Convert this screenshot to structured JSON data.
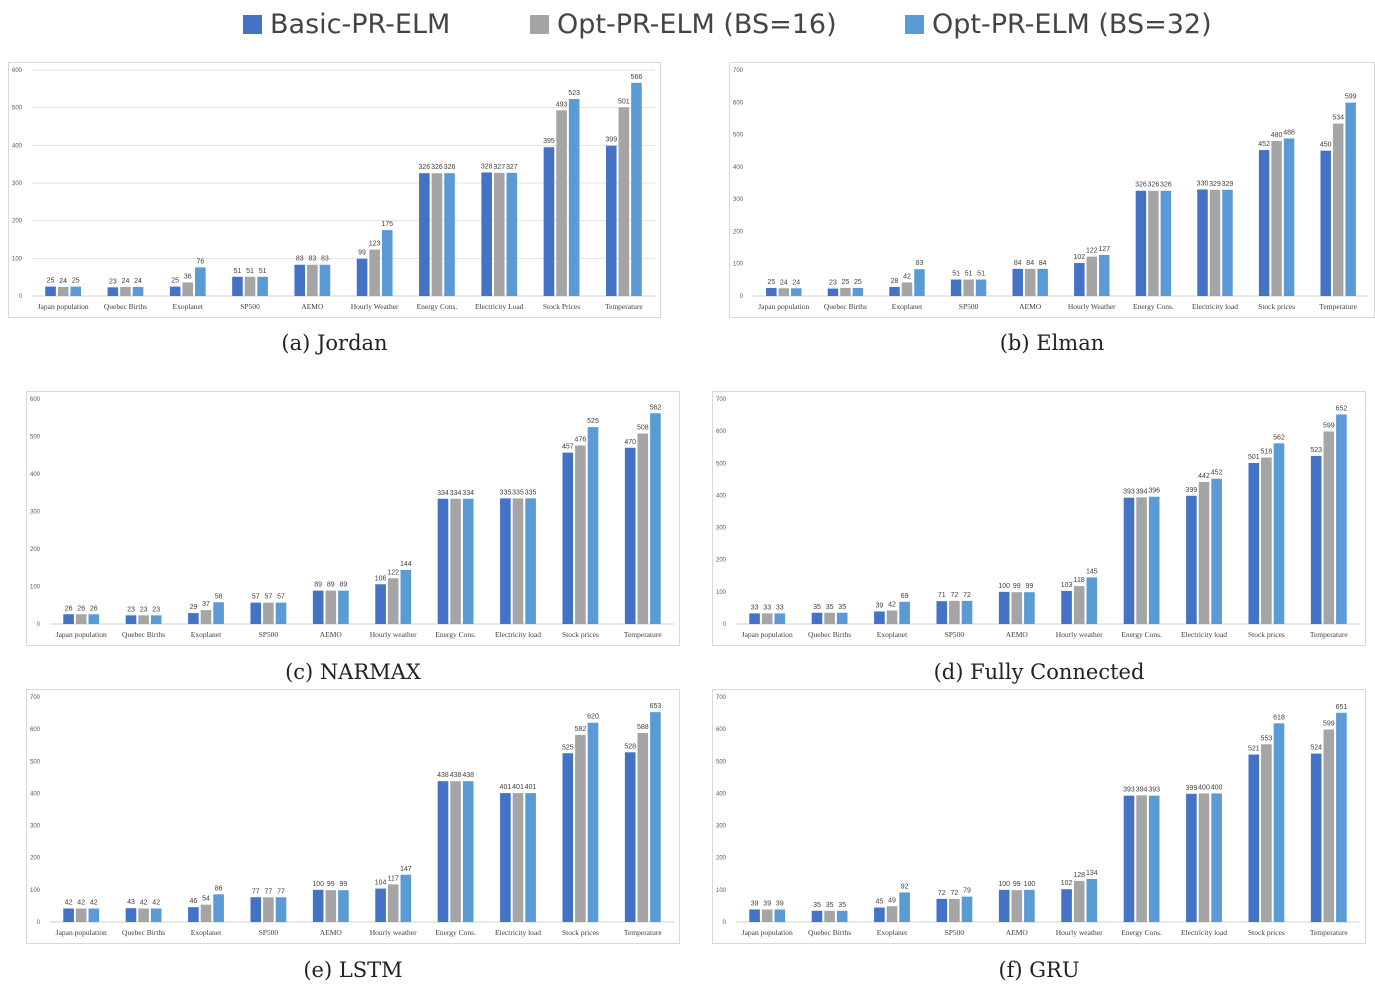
{
  "legend": {
    "items": [
      {
        "label": "Basic-PR-ELM",
        "color": "#4472C4"
      },
      {
        "label": "Opt-PR-ELM (BS=16)",
        "color": "#A5A5A5"
      },
      {
        "label": "Opt-PR-ELM (BS=32)",
        "color": "#5B9BD5"
      }
    ]
  },
  "captions": [
    "(a) Jordan",
    "(b) Elman",
    "(c) NARMAX",
    "(d) Fully Connected",
    "(e) LSTM",
    "(f) GRU"
  ],
  "chart_data": [
    {
      "type": "bar",
      "caption": "(a) Jordan",
      "categories": [
        "Japan population",
        "Quebec Births",
        "Exoplanet",
        "SP500",
        "AEMO",
        "Hourly Weather",
        "Energy Cons.",
        "Electricity Load",
        "Stock Prices",
        "Temperature"
      ],
      "ylim": [
        0,
        600
      ],
      "yticks": [
        0,
        100,
        200,
        300,
        400,
        500,
        600
      ],
      "grid": true,
      "legend": "top",
      "series": [
        {
          "name": "Basic-PR-ELM",
          "values": [
            25,
            23,
            25,
            51,
            83,
            99,
            326,
            328,
            395,
            399
          ]
        },
        {
          "name": "Opt-PR-ELM (BS=16)",
          "values": [
            24,
            24,
            36,
            51,
            83,
            123,
            326,
            327,
            493,
            501
          ]
        },
        {
          "name": "Opt-PR-ELM (BS=32)",
          "values": [
            25,
            24,
            76,
            51,
            83,
            175,
            326,
            327,
            523,
            566
          ]
        }
      ]
    },
    {
      "type": "bar",
      "caption": "(b) Elman",
      "categories": [
        "Japan population",
        "Quebec Births",
        "Exoplanet",
        "SP500",
        "AEMO",
        "Hourly Weather",
        "Energy Cons.",
        "Electricity load",
        "Stock prices",
        "Temperature"
      ],
      "ylim": [
        0,
        700
      ],
      "yticks": [
        0,
        100,
        200,
        300,
        400,
        500,
        600,
        700
      ],
      "grid": false,
      "legend": "top",
      "series": [
        {
          "name": "Basic-PR-ELM",
          "values": [
            25,
            23,
            28,
            51,
            84,
            102,
            326,
            330,
            452,
            450
          ]
        },
        {
          "name": "Opt-PR-ELM (BS=16)",
          "values": [
            24,
            25,
            42,
            51,
            84,
            122,
            326,
            329,
            480,
            534
          ]
        },
        {
          "name": "Opt-PR-ELM (BS=32)",
          "values": [
            24,
            25,
            83,
            51,
            84,
            127,
            326,
            329,
            488,
            599
          ]
        }
      ]
    },
    {
      "type": "bar",
      "caption": "(c) NARMAX",
      "categories": [
        "Japan population",
        "Quebec Births",
        "Exoplanet",
        "SP500",
        "AEMO",
        "Hourly weather",
        "Energy Cons.",
        "Electricity load",
        "Stock prices",
        "Temperature"
      ],
      "ylim": [
        0,
        600
      ],
      "yticks": [
        0,
        100,
        200,
        300,
        400,
        500,
        600
      ],
      "grid": false,
      "legend": "top",
      "series": [
        {
          "name": "Basic-PR-ELM",
          "values": [
            26,
            23,
            29,
            57,
            89,
            106,
            334,
            335,
            457,
            470
          ]
        },
        {
          "name": "Opt-PR-ELM (BS=16)",
          "values": [
            26,
            23,
            37,
            57,
            89,
            122,
            334,
            335,
            476,
            508
          ]
        },
        {
          "name": "Opt-PR-ELM (BS=32)",
          "values": [
            26,
            23,
            58,
            57,
            89,
            144,
            334,
            335,
            525,
            562
          ]
        }
      ]
    },
    {
      "type": "bar",
      "caption": "(d) Fully Connected",
      "categories": [
        "Japan population",
        "Quebec Births",
        "Exoplanet",
        "SP500",
        "AEMO",
        "Hourly weather",
        "Energy Cons.",
        "Electricity load",
        "Stock prices",
        "Temperature"
      ],
      "ylim": [
        0,
        700
      ],
      "yticks": [
        0,
        100,
        200,
        300,
        400,
        500,
        600,
        700
      ],
      "grid": false,
      "legend": "top",
      "series": [
        {
          "name": "Basic-PR-ELM",
          "values": [
            33,
            35,
            39,
            71,
            100,
            103,
            393,
            399,
            501,
            523
          ]
        },
        {
          "name": "Opt-PR-ELM (BS=16)",
          "values": [
            33,
            35,
            42,
            72,
            99,
            118,
            394,
            442,
            518,
            599
          ]
        },
        {
          "name": "Opt-PR-ELM (BS=32)",
          "values": [
            33,
            35,
            69,
            72,
            99,
            145,
            396,
            452,
            562,
            652
          ]
        }
      ]
    },
    {
      "type": "bar",
      "caption": "(e) LSTM",
      "categories": [
        "Japan population",
        "Quebec Births",
        "Exoplanet",
        "SP500",
        "AEMO",
        "Hourly weather",
        "Energy Cons.",
        "Electricity load",
        "Stock prices",
        "Temperature"
      ],
      "ylim": [
        0,
        700
      ],
      "yticks": [
        0,
        100,
        200,
        300,
        400,
        500,
        600,
        700
      ],
      "grid": false,
      "legend": "top",
      "series": [
        {
          "name": "Basic-PR-ELM",
          "values": [
            42,
            43,
            46,
            77,
            100,
            104,
            438,
            401,
            525,
            528
          ]
        },
        {
          "name": "Opt-PR-ELM (BS=16)",
          "values": [
            42,
            42,
            54,
            77,
            99,
            117,
            438,
            401,
            582,
            588
          ]
        },
        {
          "name": "Opt-PR-ELM (BS=32)",
          "values": [
            42,
            42,
            86,
            77,
            99,
            147,
            438,
            401,
            620,
            653
          ]
        }
      ]
    },
    {
      "type": "bar",
      "caption": "(f) GRU",
      "categories": [
        "Japan population",
        "Quebec Births",
        "Exoplanet",
        "SP500",
        "AEMO",
        "Hourly weather",
        "Energy Cons.",
        "Electricity load",
        "Stock prices",
        "Temperature"
      ],
      "ylim": [
        0,
        700
      ],
      "yticks": [
        0,
        100,
        200,
        300,
        400,
        500,
        600,
        700
      ],
      "grid": false,
      "legend": "top",
      "series": [
        {
          "name": "Basic-PR-ELM",
          "values": [
            39,
            35,
            45,
            72,
            100,
            102,
            393,
            399,
            521,
            524
          ]
        },
        {
          "name": "Opt-PR-ELM (BS=16)",
          "values": [
            39,
            35,
            49,
            72,
            99,
            128,
            394,
            400,
            553,
            599
          ]
        },
        {
          "name": "Opt-PR-ELM (BS=32)",
          "values": [
            39,
            35,
            92,
            79,
            100,
            134,
            393,
            400,
            618,
            651
          ]
        }
      ]
    }
  ]
}
